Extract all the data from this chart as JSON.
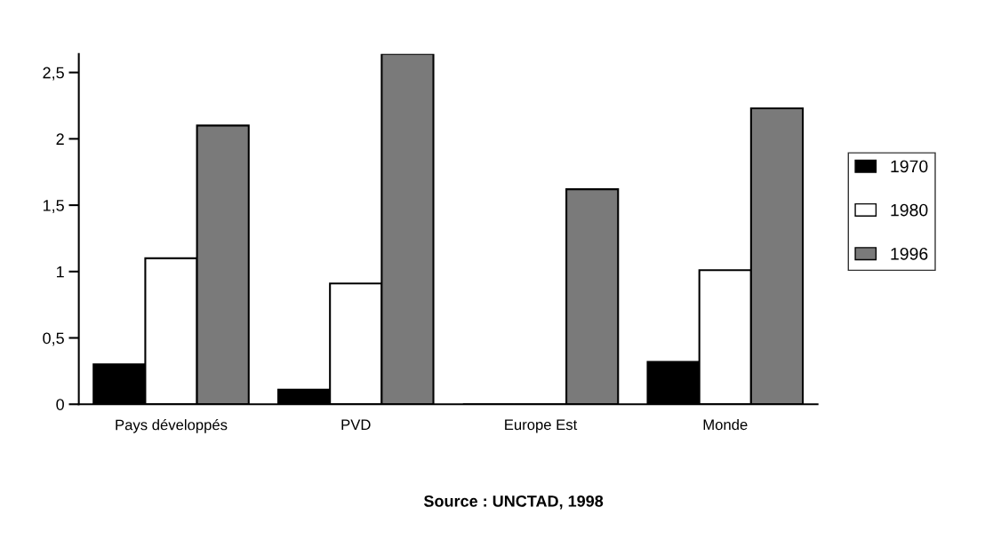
{
  "chart_data": {
    "type": "bar",
    "categories": [
      "Pays développés",
      "PVD",
      "Europe Est",
      "Monde"
    ],
    "series": [
      {
        "name": "1970",
        "color": "#000000",
        "values": [
          0.3,
          0.11,
          0,
          0.32
        ]
      },
      {
        "name": "1980",
        "color": "#ffffff",
        "values": [
          1.1,
          0.91,
          0,
          1.01
        ]
      },
      {
        "name": "1996",
        "color": "#7a7a7a",
        "values": [
          2.1,
          2.64,
          1.62,
          2.23
        ]
      }
    ],
    "ylim": [
      0,
      2.64
    ],
    "yticks": [
      0,
      {
        "value": 0.5,
        "label": "0,5"
      },
      1,
      {
        "value": 1.5,
        "label": "1,5"
      },
      2,
      {
        "value": 2.5,
        "label": "2,5"
      }
    ],
    "grid": false,
    "legend": "right",
    "annotations": [
      "Source : UNCTAD, 1998"
    ]
  }
}
